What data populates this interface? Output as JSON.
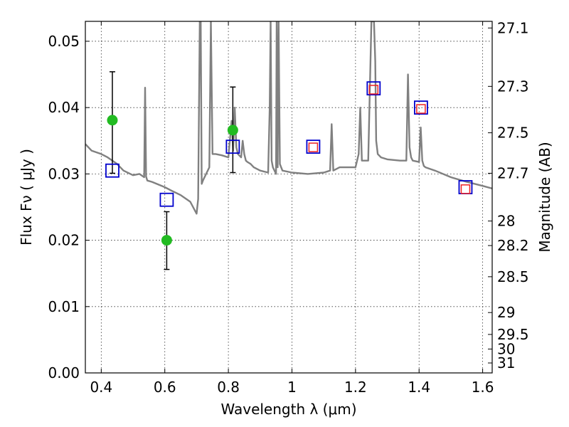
{
  "chart_data": {
    "type": "scatter",
    "title": "",
    "xlabel": "Wavelength  λ (μm)",
    "ylabel": "Flux  Fν  ( μJy )",
    "ylabel_right": "Magnitude (AB)",
    "xlim": [
      0.35,
      1.63
    ],
    "ylim": [
      0.0,
      0.053
    ],
    "grid": true,
    "x_ticks": [
      0.4,
      0.6,
      0.8,
      1.0,
      1.2,
      1.4,
      1.6
    ],
    "x_tick_labels": [
      "0.4",
      "0.6",
      "0.8",
      "1",
      "1.2",
      "1.4",
      "1.6"
    ],
    "y_ticks": [
      0.0,
      0.01,
      0.02,
      0.03,
      0.04,
      0.05
    ],
    "y_tick_labels": [
      "0.00",
      "0.01",
      "0.02",
      "0.03",
      "0.04",
      "0.05"
    ],
    "right_ticks": [
      {
        "label": "27.1",
        "flux": 0.052
      },
      {
        "label": "27.3",
        "flux": 0.0432
      },
      {
        "label": "27.5",
        "flux": 0.0362
      },
      {
        "label": "27.7",
        "flux": 0.0301
      },
      {
        "label": "28",
        "flux": 0.0229
      },
      {
        "label": "28.2",
        "flux": 0.0192
      },
      {
        "label": "28.5",
        "flux": 0.0145
      },
      {
        "label": "29",
        "flux": 0.0091
      },
      {
        "label": "29.5",
        "flux": 0.0058
      },
      {
        "label": "30",
        "flux": 0.0036
      },
      {
        "label": "31",
        "flux": 0.0015
      }
    ],
    "series": [
      {
        "kind": "model_spectrum",
        "color": "#808080",
        "x": [
          0.35,
          0.37,
          0.4,
          0.42,
          0.45,
          0.47,
          0.5,
          0.52,
          0.535,
          0.538,
          0.541,
          0.545,
          0.56,
          0.6,
          0.62,
          0.65,
          0.68,
          0.7,
          0.705,
          0.71,
          0.713,
          0.716,
          0.72,
          0.74,
          0.745,
          0.75,
          0.76,
          0.78,
          0.8,
          0.81,
          0.815,
          0.82,
          0.825,
          0.83,
          0.84,
          0.845,
          0.85,
          0.855,
          0.86,
          0.87,
          0.88,
          0.9,
          0.925,
          0.93,
          0.933,
          0.936,
          0.94,
          0.95,
          0.952,
          0.955,
          0.958,
          0.962,
          0.966,
          0.97,
          1.0,
          1.05,
          1.1,
          1.12,
          1.125,
          1.13,
          1.15,
          1.2,
          1.21,
          1.215,
          1.22,
          1.24,
          1.25,
          1.253,
          1.258,
          1.262,
          1.265,
          1.27,
          1.28,
          1.3,
          1.34,
          1.36,
          1.365,
          1.37,
          1.375,
          1.38,
          1.4,
          1.405,
          1.41,
          1.415,
          1.42,
          1.45,
          1.5,
          1.55,
          1.6,
          1.63
        ],
        "y": [
          0.0345,
          0.0335,
          0.033,
          0.0325,
          0.0315,
          0.0305,
          0.0298,
          0.03,
          0.0295,
          0.043,
          0.0296,
          0.029,
          0.0288,
          0.028,
          0.0275,
          0.0268,
          0.0258,
          0.024,
          0.0262,
          0.053,
          0.053,
          0.0285,
          0.029,
          0.031,
          0.053,
          0.033,
          0.033,
          0.0328,
          0.0325,
          0.038,
          0.0335,
          0.04,
          0.034,
          0.033,
          0.0325,
          0.035,
          0.033,
          0.032,
          0.0318,
          0.0315,
          0.031,
          0.0305,
          0.0302,
          0.04,
          0.053,
          0.032,
          0.031,
          0.03,
          0.053,
          0.031,
          0.053,
          0.0315,
          0.031,
          0.0305,
          0.0302,
          0.03,
          0.0302,
          0.0305,
          0.0375,
          0.0305,
          0.031,
          0.031,
          0.033,
          0.04,
          0.032,
          0.032,
          0.053,
          0.053,
          0.053,
          0.047,
          0.035,
          0.033,
          0.0325,
          0.0322,
          0.032,
          0.032,
          0.045,
          0.034,
          0.0325,
          0.032,
          0.0318,
          0.037,
          0.032,
          0.0312,
          0.031,
          0.0305,
          0.0295,
          0.0288,
          0.0282,
          0.0278
        ]
      },
      {
        "kind": "observed_points",
        "color": "#22bb22",
        "points": [
          {
            "x": 0.435,
            "y": 0.0381,
            "err_low": 0.0301,
            "err_high": 0.0454
          },
          {
            "x": 0.606,
            "y": 0.02,
            "err_low": 0.0156,
            "err_high": 0.0243
          },
          {
            "x": 0.814,
            "y": 0.0366,
            "err_low": 0.0302,
            "err_high": 0.0431
          }
        ]
      },
      {
        "kind": "model_photometry",
        "color": "#0000cc",
        "points": [
          {
            "x": 0.435,
            "y": 0.0305
          },
          {
            "x": 0.606,
            "y": 0.0261
          },
          {
            "x": 0.814,
            "y": 0.0341
          },
          {
            "x": 1.067,
            "y": 0.0341
          },
          {
            "x": 1.257,
            "y": 0.0429
          },
          {
            "x": 1.406,
            "y": 0.04
          },
          {
            "x": 1.546,
            "y": 0.028
          }
        ]
      },
      {
        "kind": "upper_points",
        "color": "#ee2222",
        "points": [
          {
            "x": 1.067,
            "y": 0.034
          },
          {
            "x": 1.257,
            "y": 0.0427
          },
          {
            "x": 1.406,
            "y": 0.0398
          },
          {
            "x": 1.546,
            "y": 0.0277
          }
        ]
      }
    ]
  }
}
